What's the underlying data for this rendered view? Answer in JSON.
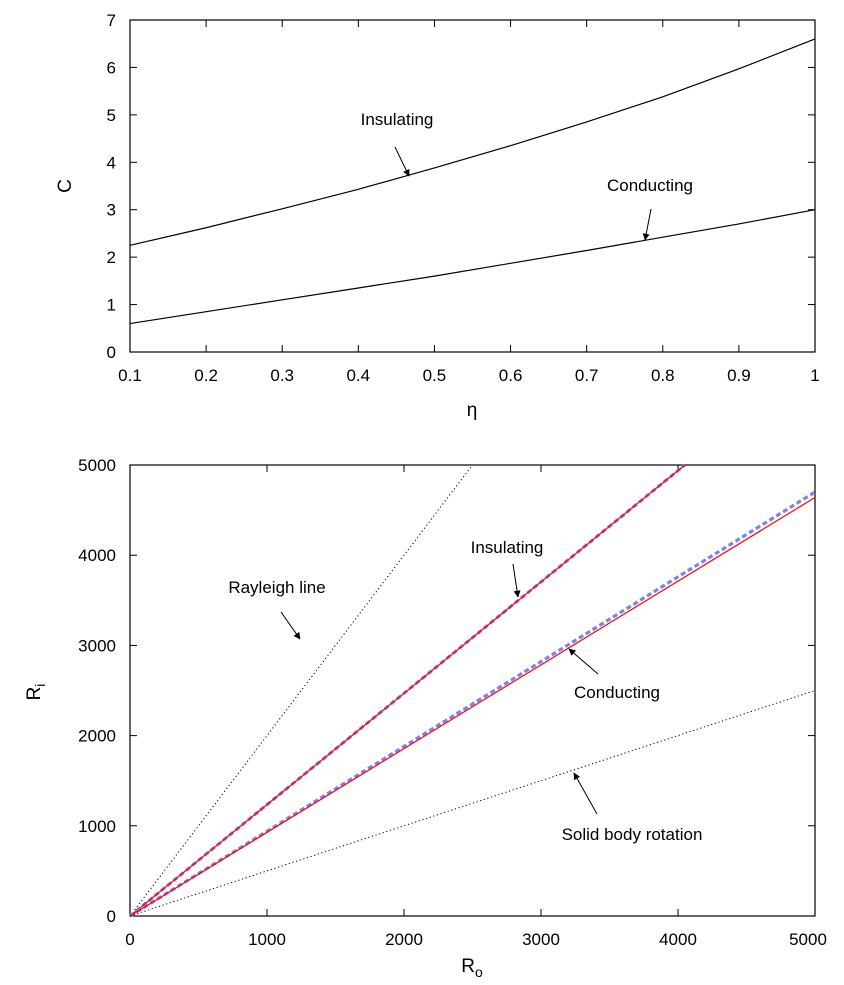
{
  "chart_data": [
    {
      "type": "line",
      "xlabel": "η",
      "ylabel": "C",
      "xlim": [
        0.1,
        1
      ],
      "ylim": [
        0,
        7
      ],
      "x_ticks": [
        "0.1",
        "0.2",
        "0.3",
        "0.4",
        "0.5",
        "0.6",
        "0.7",
        "0.8",
        "0.9",
        "1"
      ],
      "y_ticks": [
        "0",
        "1",
        "2",
        "3",
        "4",
        "5",
        "6",
        "7"
      ],
      "grid": false,
      "series": [
        {
          "name": "Insulating",
          "color": "#000000",
          "x": [
            0.1,
            0.2,
            0.3,
            0.4,
            0.5,
            0.6,
            0.7,
            0.8,
            0.9,
            1.0
          ],
          "y": [
            2.25,
            2.62,
            3.02,
            3.43,
            3.88,
            4.35,
            4.85,
            5.38,
            5.97,
            6.6
          ]
        },
        {
          "name": "Conducting",
          "color": "#000000",
          "x": [
            0.1,
            0.2,
            0.3,
            0.4,
            0.5,
            0.6,
            0.7,
            0.8,
            0.9,
            1.0
          ],
          "y": [
            0.6,
            0.85,
            1.1,
            1.35,
            1.6,
            1.87,
            2.14,
            2.42,
            2.7,
            3.0
          ]
        }
      ],
      "annotations": [
        {
          "text": "Insulating",
          "x": 0.47,
          "y": 3.7
        },
        {
          "text": "Conducting",
          "x": 0.78,
          "y": 2.35
        }
      ]
    },
    {
      "type": "line",
      "xlabel": "R",
      "xlabel_sub": "o",
      "ylabel": "R",
      "ylabel_sub": "i",
      "xlim": [
        0,
        5000
      ],
      "ylim": [
        0,
        5000
      ],
      "x_ticks": [
        "0",
        "1000",
        "2000",
        "3000",
        "4000",
        "5000"
      ],
      "y_ticks": [
        "0",
        "1000",
        "2000",
        "3000",
        "4000",
        "5000"
      ],
      "grid": false,
      "series": [
        {
          "name": "Rayleigh line",
          "color": "#000000",
          "style": "dotted",
          "x": [
            0,
            2500
          ],
          "y": [
            0,
            5000
          ]
        },
        {
          "name": "Insulating",
          "color": "#8080ee",
          "style": "dashed",
          "x": [
            0,
            4050
          ],
          "y": [
            0,
            5000
          ]
        },
        {
          "name": "Insulating",
          "color": "#ff0000",
          "style": "solid",
          "x": [
            0,
            4050
          ],
          "y": [
            0,
            5000
          ]
        },
        {
          "name": "Conducting",
          "color": "#8080ee",
          "style": "dashed",
          "x": [
            0,
            5000
          ],
          "y": [
            0,
            4700
          ]
        },
        {
          "name": "Conducting",
          "color": "#ff0000",
          "style": "solid",
          "x": [
            0,
            5000
          ],
          "y": [
            0,
            4640
          ]
        },
        {
          "name": "Solid body rotation",
          "color": "#000000",
          "style": "dotted",
          "x": [
            0,
            5000
          ],
          "y": [
            0,
            2500
          ]
        }
      ],
      "annotations": [
        {
          "text": "Rayleigh line",
          "x": 1250,
          "y": 2500
        },
        {
          "text": "Insulating",
          "x": 2830,
          "y": 3500
        },
        {
          "text": "Conducting",
          "x": 3200,
          "y": 2980
        },
        {
          "text": "Solid body rotation",
          "x": 3250,
          "y": 1620
        }
      ]
    }
  ]
}
